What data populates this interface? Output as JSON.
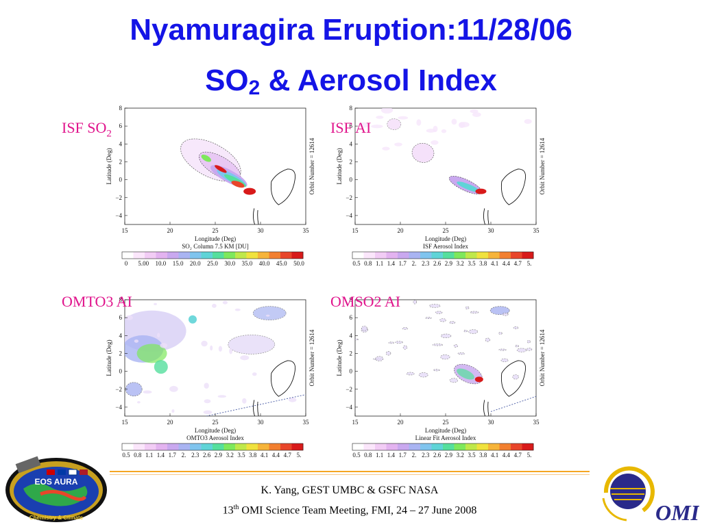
{
  "title": {
    "line1": "Nyamuragira Eruption:11/28/06",
    "line2_prefix": "SO",
    "line2_sub": "2",
    "line2_suffix": " & Aerosol Index"
  },
  "panels": [
    {
      "label": "ISF SO",
      "label_sub": "2",
      "colorbar_title": "SO₂ Column 7.5 KM [DU]",
      "colorbar_ticks": [
        "0",
        "5.00",
        "10.0",
        "15.0",
        "20.0",
        "25.0",
        "30.0",
        "35.0",
        "40.0",
        "45.0",
        "50.0"
      ]
    },
    {
      "label": "ISF AI",
      "label_sub": "",
      "colorbar_title": "ISF Aerosol Index",
      "colorbar_ticks": [
        "0.5",
        "0.8",
        "1.1",
        "1.4",
        "1.7",
        "2.",
        "2.3",
        "2.6",
        "2.9",
        "3.2",
        "3.5",
        "3.8",
        "4.1",
        "4.4",
        "4.7",
        "5."
      ]
    },
    {
      "label": "OMTO3 AI",
      "label_sub": "",
      "colorbar_title": "OMTO3 Aerosol Index",
      "colorbar_ticks": [
        "0.5",
        "0.8",
        "1.1",
        "1.4",
        "1.7",
        "2.",
        "2.3",
        "2.6",
        "2.9",
        "3.2",
        "3.5",
        "3.8",
        "4.1",
        "4.4",
        "4.7",
        "5."
      ]
    },
    {
      "label": "OMSO2 AI",
      "label_sub": "",
      "colorbar_title": "Linear Fit Aerosol Index",
      "colorbar_ticks": [
        "0.5",
        "0.8",
        "1.1",
        "1.4",
        "1.7",
        "2.",
        "2.3",
        "2.6",
        "2.9",
        "3.2",
        "3.5",
        "3.8",
        "4.1",
        "4.4",
        "4.7",
        "5."
      ]
    }
  ],
  "map_axes": {
    "xlabel": "Longitude (Deg)",
    "ylabel": "Latitude (Deg)",
    "right_label": "Orbit Number = 12614",
    "x_ticks": [
      "15",
      "20",
      "25",
      "30",
      "35"
    ],
    "y_ticks": [
      "8",
      "6",
      "4",
      "2",
      "0",
      "−2",
      "−4"
    ]
  },
  "colorbar_colors": [
    "#ffffff",
    "#fbe6fb",
    "#f2ccf5",
    "#e3b3f0",
    "#c9a8ef",
    "#a9b4f2",
    "#7fc4ee",
    "#5fd4d7",
    "#55df9d",
    "#7ee85c",
    "#bfe84a",
    "#f0e23e",
    "#f6b43a",
    "#f27f30",
    "#e8452a",
    "#d81a1a"
  ],
  "footer": {
    "credit_line1": "K. Yang, GEST UMBC  & GSFC NASA",
    "credit_line2_prefix": "13",
    "credit_line2_sup": "th",
    "credit_line2_suffix": " OMI Science Team Meeting, FMI, 24 – 27 June 2008",
    "eos_logo_text": "EOS AURA",
    "eos_logo_subtext": "Chemistry & Climate",
    "omi_logo_text": "OMI"
  }
}
